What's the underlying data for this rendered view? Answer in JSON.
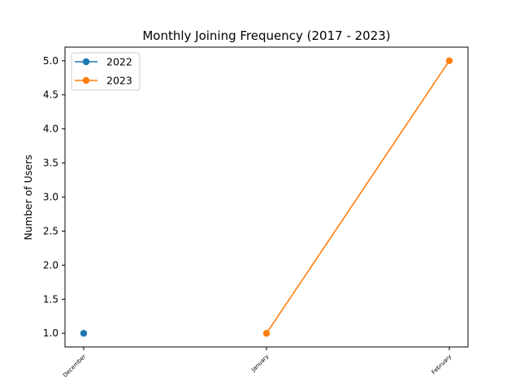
{
  "chart_data": {
    "type": "line",
    "title": "Monthly Joining Frequency (2017 - 2023)",
    "xlabel": "",
    "ylabel": "Number of Users",
    "categories": [
      "December",
      "January",
      "February"
    ],
    "ylim": [
      0.8,
      5.2
    ],
    "yticks": [
      "1.0",
      "1.5",
      "2.0",
      "2.5",
      "3.0",
      "3.5",
      "4.0",
      "4.5",
      "5.0"
    ],
    "grid": false,
    "legend_position": "upper-left",
    "series": [
      {
        "name": "2022",
        "color": "#1f77b4",
        "x": [
          "December"
        ],
        "values": [
          1
        ]
      },
      {
        "name": "2023",
        "color": "#ff7f0e",
        "x": [
          "January",
          "February"
        ],
        "values": [
          1,
          5
        ]
      }
    ]
  }
}
